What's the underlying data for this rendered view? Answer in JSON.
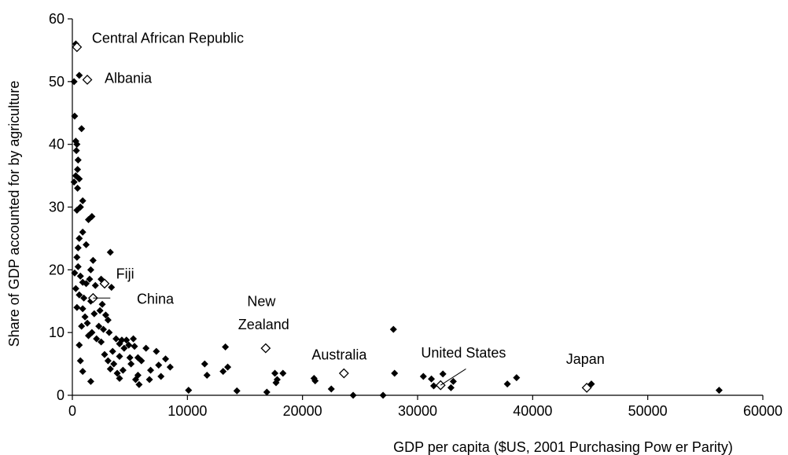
{
  "chart_data": {
    "type": "scatter",
    "title": "",
    "xlabel": "GDP per capita ($US, 2001 Purchasing Pow er Parity)",
    "ylabel": "Share of GDP accounted for by agriculture",
    "xlim": [
      0,
      60000
    ],
    "ylim": [
      0,
      60
    ],
    "x_ticks": [
      "0",
      "10000",
      "20000",
      "30000",
      "40000",
      "50000",
      "60000"
    ],
    "y_ticks": [
      "0",
      "10",
      "20",
      "30",
      "40",
      "50",
      "60"
    ],
    "grid": false,
    "legend": "none",
    "marker_color": "#000000",
    "series": [
      {
        "marker": "filled-diamond",
        "points": [
          [
            300,
            56
          ],
          [
            150,
            50
          ],
          [
            600,
            51
          ],
          [
            200,
            44.5
          ],
          [
            800,
            42.5
          ],
          [
            300,
            40.5
          ],
          [
            400,
            40
          ],
          [
            350,
            39
          ],
          [
            500,
            37.5
          ],
          [
            450,
            36
          ],
          [
            300,
            35
          ],
          [
            600,
            34.5
          ],
          [
            150,
            34
          ],
          [
            450,
            33
          ],
          [
            900,
            31
          ],
          [
            700,
            30
          ],
          [
            400,
            29.5
          ],
          [
            1700,
            28.5
          ],
          [
            1400,
            28
          ],
          [
            900,
            26
          ],
          [
            600,
            25
          ],
          [
            1200,
            24
          ],
          [
            500,
            23.5
          ],
          [
            3300,
            22.8
          ],
          [
            400,
            22
          ],
          [
            1800,
            21.5
          ],
          [
            500,
            20.5
          ],
          [
            200,
            19.5
          ],
          [
            1600,
            20
          ],
          [
            700,
            19
          ],
          [
            1500,
            18.5
          ],
          [
            2500,
            18.5
          ],
          [
            900,
            18
          ],
          [
            1200,
            17.8
          ],
          [
            2000,
            17.5
          ],
          [
            300,
            17
          ],
          [
            3400,
            17.2
          ],
          [
            600,
            16
          ],
          [
            1000,
            15.5
          ],
          [
            1600,
            15
          ],
          [
            2600,
            14.5
          ],
          [
            400,
            14
          ],
          [
            900,
            13.8
          ],
          [
            1900,
            13
          ],
          [
            2400,
            13.5
          ],
          [
            2900,
            12.8
          ],
          [
            1100,
            12.5
          ],
          [
            3100,
            12
          ],
          [
            1300,
            11.5
          ],
          [
            2300,
            11
          ],
          [
            800,
            11
          ],
          [
            2700,
            10.5
          ],
          [
            1700,
            10
          ],
          [
            3200,
            10
          ],
          [
            1400,
            9.5
          ],
          [
            2100,
            9
          ],
          [
            3800,
            9
          ],
          [
            4300,
            8.8
          ],
          [
            5300,
            9
          ],
          [
            4700,
            8.8
          ],
          [
            2500,
            8.5
          ],
          [
            4100,
            8.2
          ],
          [
            4900,
            8
          ],
          [
            600,
            8
          ],
          [
            5400,
            7.8
          ],
          [
            6400,
            7.5
          ],
          [
            4500,
            7.5
          ],
          [
            3500,
            7
          ],
          [
            7300,
            7
          ],
          [
            2800,
            6.5
          ],
          [
            4100,
            6.2
          ],
          [
            5000,
            6
          ],
          [
            5700,
            6
          ],
          [
            8100,
            5.8
          ],
          [
            3100,
            5.5
          ],
          [
            6000,
            5.5
          ],
          [
            700,
            5.5
          ],
          [
            3600,
            5
          ],
          [
            5100,
            5
          ],
          [
            7500,
            4.8
          ],
          [
            8500,
            4.5
          ],
          [
            3300,
            4.2
          ],
          [
            4400,
            4
          ],
          [
            6800,
            4
          ],
          [
            900,
            3.8
          ],
          [
            3900,
            3.5
          ],
          [
            5700,
            3.2
          ],
          [
            7700,
            3
          ],
          [
            4100,
            2.7
          ],
          [
            5500,
            2.5
          ],
          [
            6700,
            2.5
          ],
          [
            1600,
            2.2
          ],
          [
            5800,
            1.7
          ],
          [
            10100,
            0.8
          ],
          [
            11500,
            5
          ],
          [
            11700,
            3.2
          ],
          [
            13300,
            7.7
          ],
          [
            13500,
            4.5
          ],
          [
            13100,
            3.8
          ],
          [
            14300,
            0.7
          ],
          [
            16900,
            0.5
          ],
          [
            17600,
            3.5
          ],
          [
            17800,
            2.5
          ],
          [
            17700,
            2
          ],
          [
            18300,
            3.5
          ],
          [
            21000,
            2.7
          ],
          [
            21100,
            2.3
          ],
          [
            22500,
            1
          ],
          [
            24400,
            0
          ],
          [
            27000,
            0
          ],
          [
            27900,
            10.5
          ],
          [
            28000,
            3.5
          ],
          [
            30500,
            3
          ],
          [
            31200,
            2.6
          ],
          [
            31400,
            1.5
          ],
          [
            32200,
            3.4
          ],
          [
            32900,
            1.2
          ],
          [
            33100,
            2.2
          ],
          [
            37800,
            1.8
          ],
          [
            38600,
            2.8
          ],
          [
            45100,
            1.8
          ],
          [
            56200,
            0.8
          ]
        ]
      },
      {
        "marker": "hollow-diamond",
        "points": [
          [
            400,
            55.5
          ],
          [
            1300,
            50.3
          ],
          [
            2800,
            17.8
          ],
          [
            1800,
            15.5
          ],
          [
            16800,
            7.5
          ],
          [
            23600,
            3.5
          ],
          [
            32000,
            1.6
          ],
          [
            44700,
            1.2
          ]
        ]
      }
    ],
    "annotations": [
      {
        "text": "Central African Republic",
        "x": 1700,
        "y": 56.2
      },
      {
        "text": "Albania",
        "x": 2800,
        "y": 49.8
      },
      {
        "text": "Fiji",
        "x": 3800,
        "y": 18.6
      },
      {
        "text": "China",
        "x": 5600,
        "y": 14.6
      },
      {
        "text": "New",
        "x": 15200,
        "y": 14.2
      },
      {
        "text": "Zealand",
        "x": 14400,
        "y": 10.5
      },
      {
        "text": "Australia",
        "x": 20800,
        "y": 5.7
      },
      {
        "text": "United States",
        "x": 30300,
        "y": 6.0
      },
      {
        "text": "Japan",
        "x": 42900,
        "y": 5.0
      }
    ],
    "leader_lines": [
      {
        "from": [
          1800,
          15.5
        ],
        "to": [
          3300,
          15.5
        ]
      },
      {
        "from": [
          32000,
          1.6
        ],
        "to": [
          34200,
          4.2
        ]
      }
    ]
  }
}
